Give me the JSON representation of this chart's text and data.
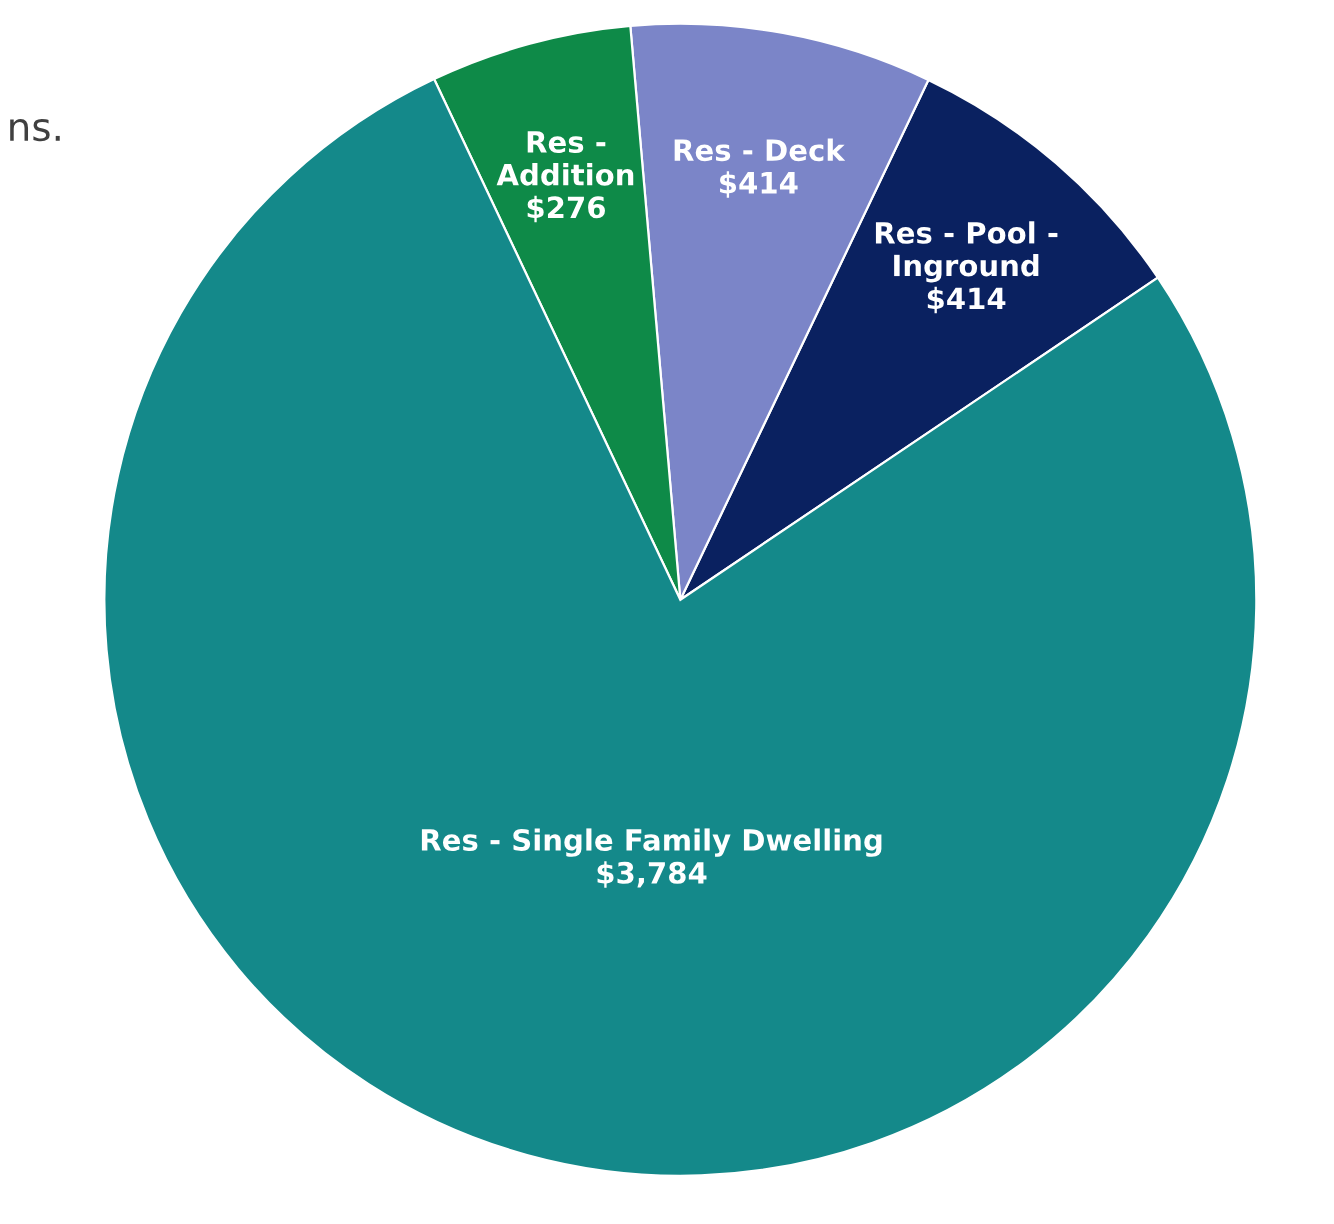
{
  "chart_data": {
    "type": "pie",
    "categories": [
      "Res - Pool - Inground",
      "Res - Deck",
      "Res - Addition",
      "Res - Single Family Dwelling"
    ],
    "values": [
      414,
      414,
      276,
      3784
    ],
    "value_labels": [
      "$414",
      "$414",
      "$276",
      "$3,784"
    ],
    "colors": [
      "#0a2160",
      "#7b85c8",
      "#0e8a48",
      "#14898a"
    ],
    "annotations": [
      "ns."
    ]
  }
}
